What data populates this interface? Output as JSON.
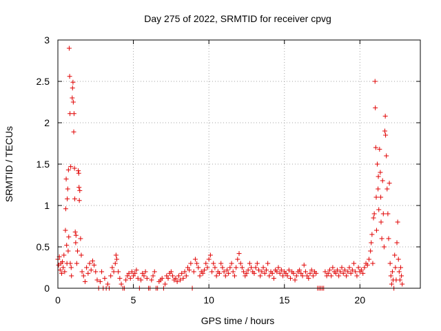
{
  "chart_data": {
    "type": "scatter",
    "title": "Day 275 of 2022, SRMTID for receiver cpvg",
    "xlabel": "GPS time / hours",
    "ylabel": "SRMTID / TECUs",
    "xlim": [
      0,
      24
    ],
    "ylim": [
      0,
      3
    ],
    "xticks": [
      "0",
      "5",
      "10",
      "15",
      "20"
    ],
    "xtick_values": [
      0,
      5,
      10,
      15,
      20
    ],
    "yticks": [
      "0",
      "0.5",
      "1",
      "1.5",
      "2",
      "2.5",
      "3"
    ],
    "ytick_values": [
      0,
      0.5,
      1,
      1.5,
      2,
      2.5,
      3
    ],
    "grid": true,
    "marker": "+",
    "color": "#e00000",
    "series": [
      {
        "name": "SRMTID",
        "points": [
          [
            0.0,
            0.35
          ],
          [
            0.05,
            0.28
          ],
          [
            0.1,
            0.38
          ],
          [
            0.15,
            0.22
          ],
          [
            0.2,
            0.3
          ],
          [
            0.25,
            0.18
          ],
          [
            0.3,
            0.32
          ],
          [
            0.35,
            0.25
          ],
          [
            0.4,
            0.4
          ],
          [
            0.45,
            0.2
          ],
          [
            0.5,
            0.7
          ],
          [
            0.52,
            0.96
          ],
          [
            0.55,
            1.32
          ],
          [
            0.58,
            0.52
          ],
          [
            0.6,
            0.3
          ],
          [
            0.62,
            1.08
          ],
          [
            0.65,
            1.2
          ],
          [
            0.68,
            0.45
          ],
          [
            0.7,
            1.43
          ],
          [
            0.72,
            0.62
          ],
          [
            0.75,
            2.9
          ],
          [
            0.78,
            2.56
          ],
          [
            0.8,
            2.11
          ],
          [
            0.82,
            0.3
          ],
          [
            0.85,
            1.47
          ],
          [
            0.88,
            0.25
          ],
          [
            0.9,
            0.15
          ],
          [
            0.95,
            2.3
          ],
          [
            0.97,
            2.42
          ],
          [
            1.0,
            2.49
          ],
          [
            1.02,
            2.25
          ],
          [
            1.05,
            1.89
          ],
          [
            1.07,
            2.11
          ],
          [
            1.1,
            1.45
          ],
          [
            1.12,
            1.08
          ],
          [
            1.15,
            0.68
          ],
          [
            1.18,
            0.55
          ],
          [
            1.2,
            0.64
          ],
          [
            1.25,
            0.3
          ],
          [
            1.3,
            0.45
          ],
          [
            1.35,
            1.42
          ],
          [
            1.38,
            1.39
          ],
          [
            1.4,
            1.22
          ],
          [
            1.42,
            1.06
          ],
          [
            1.45,
            1.18
          ],
          [
            1.5,
            0.6
          ],
          [
            1.55,
            0.4
          ],
          [
            1.6,
            0.2
          ],
          [
            1.7,
            0.15
          ],
          [
            1.8,
            0.08
          ],
          [
            1.9,
            0.25
          ],
          [
            2.0,
            0.18
          ],
          [
            2.1,
            0.3
          ],
          [
            2.2,
            0.22
          ],
          [
            2.3,
            0.33
          ],
          [
            2.4,
            0.28
          ],
          [
            2.5,
            0.2
          ],
          [
            2.6,
            0.1
          ],
          [
            2.7,
            0.0
          ],
          [
            2.8,
            0.08
          ],
          [
            2.9,
            0.2
          ],
          [
            3.0,
            0.0
          ],
          [
            3.1,
            0.12
          ],
          [
            3.2,
            0.0
          ],
          [
            3.3,
            0.05
          ],
          [
            3.4,
            0.0
          ],
          [
            3.5,
            0.15
          ],
          [
            3.6,
            0.25
          ],
          [
            3.7,
            0.2
          ],
          [
            3.8,
            0.3
          ],
          [
            3.85,
            0.4
          ],
          [
            3.9,
            0.35
          ],
          [
            4.0,
            0.2
          ],
          [
            4.1,
            0.12
          ],
          [
            4.2,
            0.05
          ],
          [
            4.3,
            0.0
          ],
          [
            4.4,
            0.0
          ],
          [
            4.5,
            0.1
          ],
          [
            4.6,
            0.15
          ],
          [
            4.7,
            0.18
          ],
          [
            4.8,
            0.12
          ],
          [
            4.9,
            0.2
          ],
          [
            5.0,
            0.15
          ],
          [
            5.1,
            0.18
          ],
          [
            5.2,
            0.22
          ],
          [
            5.3,
            0.12
          ],
          [
            5.4,
            0.0
          ],
          [
            5.5,
            0.1
          ],
          [
            5.6,
            0.18
          ],
          [
            5.7,
            0.15
          ],
          [
            5.8,
            0.2
          ],
          [
            5.9,
            0.12
          ],
          [
            6.0,
            0.0
          ],
          [
            6.1,
            0.0
          ],
          [
            6.2,
            0.1
          ],
          [
            6.3,
            0.15
          ],
          [
            6.4,
            0.2
          ],
          [
            6.5,
            0.0
          ],
          [
            6.6,
            0.0
          ],
          [
            6.7,
            0.08
          ],
          [
            6.8,
            0.1
          ],
          [
            6.9,
            0.12
          ],
          [
            7.0,
            0.0
          ],
          [
            7.1,
            0.05
          ],
          [
            7.2,
            0.15
          ],
          [
            7.3,
            0.12
          ],
          [
            7.4,
            0.18
          ],
          [
            7.5,
            0.2
          ],
          [
            7.6,
            0.15
          ],
          [
            7.7,
            0.1
          ],
          [
            7.8,
            0.12
          ],
          [
            7.9,
            0.08
          ],
          [
            8.0,
            0.15
          ],
          [
            8.1,
            0.1
          ],
          [
            8.2,
            0.18
          ],
          [
            8.3,
            0.12
          ],
          [
            8.4,
            0.2
          ],
          [
            8.5,
            0.15
          ],
          [
            8.6,
            0.25
          ],
          [
            8.7,
            0.22
          ],
          [
            8.8,
            0.3
          ],
          [
            8.9,
            0.0
          ],
          [
            9.0,
            0.2
          ],
          [
            9.1,
            0.35
          ],
          [
            9.2,
            0.3
          ],
          [
            9.3,
            0.25
          ],
          [
            9.4,
            0.15
          ],
          [
            9.5,
            0.2
          ],
          [
            9.6,
            0.18
          ],
          [
            9.7,
            0.22
          ],
          [
            9.8,
            0.3
          ],
          [
            9.9,
            0.25
          ],
          [
            10.0,
            0.35
          ],
          [
            10.1,
            0.4
          ],
          [
            10.2,
            0.2
          ],
          [
            10.3,
            0.3
          ],
          [
            10.4,
            0.25
          ],
          [
            10.5,
            0.15
          ],
          [
            10.6,
            0.2
          ],
          [
            10.7,
            0.18
          ],
          [
            10.8,
            0.3
          ],
          [
            10.9,
            0.25
          ],
          [
            11.0,
            0.2
          ],
          [
            11.1,
            0.15
          ],
          [
            11.2,
            0.22
          ],
          [
            11.3,
            0.18
          ],
          [
            11.4,
            0.25
          ],
          [
            11.5,
            0.3
          ],
          [
            11.6,
            0.2
          ],
          [
            11.7,
            0.15
          ],
          [
            11.8,
            0.25
          ],
          [
            11.9,
            0.35
          ],
          [
            12.0,
            0.42
          ],
          [
            12.1,
            0.3
          ],
          [
            12.2,
            0.25
          ],
          [
            12.3,
            0.2
          ],
          [
            12.4,
            0.15
          ],
          [
            12.5,
            0.18
          ],
          [
            12.6,
            0.22
          ],
          [
            12.7,
            0.3
          ],
          [
            12.8,
            0.25
          ],
          [
            12.9,
            0.2
          ],
          [
            13.0,
            0.18
          ],
          [
            13.1,
            0.25
          ],
          [
            13.2,
            0.3
          ],
          [
            13.3,
            0.22
          ],
          [
            13.4,
            0.15
          ],
          [
            13.5,
            0.2
          ],
          [
            13.6,
            0.25
          ],
          [
            13.7,
            0.18
          ],
          [
            13.8,
            0.22
          ],
          [
            13.9,
            0.3
          ],
          [
            14.0,
            0.15
          ],
          [
            14.1,
            0.2
          ],
          [
            14.2,
            0.18
          ],
          [
            14.3,
            0.12
          ],
          [
            14.4,
            0.22
          ],
          [
            14.5,
            0.2
          ],
          [
            14.6,
            0.25
          ],
          [
            14.7,
            0.18
          ],
          [
            14.8,
            0.22
          ],
          [
            14.9,
            0.15
          ],
          [
            15.0,
            0.2
          ],
          [
            15.1,
            0.18
          ],
          [
            15.2,
            0.15
          ],
          [
            15.3,
            0.22
          ],
          [
            15.4,
            0.12
          ],
          [
            15.5,
            0.2
          ],
          [
            15.6,
            0.18
          ],
          [
            15.7,
            0.1
          ],
          [
            15.8,
            0.15
          ],
          [
            15.9,
            0.2
          ],
          [
            16.0,
            0.22
          ],
          [
            16.1,
            0.18
          ],
          [
            16.2,
            0.15
          ],
          [
            16.3,
            0.28
          ],
          [
            16.4,
            0.2
          ],
          [
            16.5,
            0.15
          ],
          [
            16.6,
            0.12
          ],
          [
            16.7,
            0.18
          ],
          [
            16.8,
            0.22
          ],
          [
            16.9,
            0.15
          ],
          [
            17.0,
            0.2
          ],
          [
            17.1,
            0.18
          ],
          [
            17.2,
            0.0
          ],
          [
            17.3,
            0.0
          ],
          [
            17.4,
            0.0
          ],
          [
            17.5,
            0.0
          ],
          [
            17.6,
            0.0
          ],
          [
            17.7,
            0.2
          ],
          [
            17.8,
            0.15
          ],
          [
            17.9,
            0.18
          ],
          [
            18.0,
            0.22
          ],
          [
            18.1,
            0.15
          ],
          [
            18.2,
            0.25
          ],
          [
            18.3,
            0.2
          ],
          [
            18.4,
            0.18
          ],
          [
            18.5,
            0.22
          ],
          [
            18.6,
            0.15
          ],
          [
            18.7,
            0.2
          ],
          [
            18.8,
            0.25
          ],
          [
            18.9,
            0.18
          ],
          [
            19.0,
            0.22
          ],
          [
            19.1,
            0.15
          ],
          [
            19.2,
            0.2
          ],
          [
            19.3,
            0.25
          ],
          [
            19.4,
            0.18
          ],
          [
            19.5,
            0.22
          ],
          [
            19.6,
            0.3
          ],
          [
            19.7,
            0.2
          ],
          [
            19.8,
            0.15
          ],
          [
            19.9,
            0.25
          ],
          [
            20.0,
            0.2
          ],
          [
            20.1,
            0.22
          ],
          [
            20.2,
            0.18
          ],
          [
            20.3,
            0.25
          ],
          [
            20.4,
            0.3
          ],
          [
            20.5,
            0.28
          ],
          [
            20.6,
            0.35
          ],
          [
            20.7,
            0.45
          ],
          [
            20.75,
            0.55
          ],
          [
            20.8,
            0.65
          ],
          [
            20.85,
            0.3
          ],
          [
            20.9,
            0.85
          ],
          [
            20.95,
            0.9
          ],
          [
            21.0,
            2.5
          ],
          [
            21.02,
            2.18
          ],
          [
            21.05,
            1.7
          ],
          [
            21.08,
            1.1
          ],
          [
            21.1,
            0.7
          ],
          [
            21.15,
            1.5
          ],
          [
            21.2,
            1.2
          ],
          [
            21.22,
            1.35
          ],
          [
            21.25,
            0.95
          ],
          [
            21.3,
            1.68
          ],
          [
            21.35,
            1.4
          ],
          [
            21.38,
            1.1
          ],
          [
            21.4,
            0.8
          ],
          [
            21.45,
            0.6
          ],
          [
            21.5,
            1.3
          ],
          [
            21.55,
            0.9
          ],
          [
            21.6,
            0.5
          ],
          [
            21.65,
            1.9
          ],
          [
            21.68,
            2.08
          ],
          [
            21.7,
            1.85
          ],
          [
            21.75,
            1.6
          ],
          [
            21.8,
            1.2
          ],
          [
            21.85,
            0.9
          ],
          [
            21.9,
            0.6
          ],
          [
            21.95,
            1.27
          ],
          [
            22.0,
            0.3
          ],
          [
            22.05,
            0.15
          ],
          [
            22.1,
            0.05
          ],
          [
            22.15,
            0.2
          ],
          [
            22.2,
            0.1
          ],
          [
            22.25,
            0.0
          ],
          [
            22.3,
            0.4
          ],
          [
            22.35,
            0.25
          ],
          [
            22.4,
            0.1
          ],
          [
            22.45,
            0.55
          ],
          [
            22.5,
            0.8
          ],
          [
            22.55,
            0.35
          ],
          [
            22.6,
            0.2
          ],
          [
            22.65,
            0.1
          ],
          [
            22.7,
            0.25
          ],
          [
            22.75,
            0.15
          ],
          [
            22.8,
            0.05
          ]
        ]
      }
    ]
  }
}
